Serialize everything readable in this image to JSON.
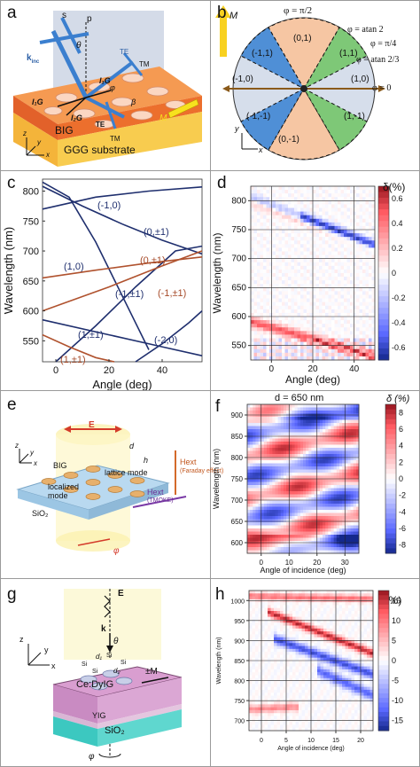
{
  "panels": {
    "a": {
      "label": "a",
      "layer_big": "BIG",
      "substrate": "GGG substrate",
      "s": "s",
      "p": "p",
      "theta": "θ",
      "k_inc": "k",
      "k_inc_sub": "inc",
      "te": "TE",
      "tm": "TM",
      "m": "M",
      "g_left": "l₁G",
      "g_mid": "l₂G",
      "g_right": "l₁G",
      "phi": "φ",
      "beta": "β",
      "x": "x",
      "y": "y",
      "z": "z"
    },
    "b": {
      "label": "b",
      "m": "M",
      "phi_pi2": "φ = π/2",
      "phi_atan2": "φ = atan 2",
      "phi_pi4": "φ = π/4",
      "phi_atan23": "φ = atan 2/3",
      "phi_0": "φ = 0",
      "orders": [
        "(0,1)",
        "(-1,1)",
        "(1,1)",
        "(-1,0)",
        "(1,0)",
        "(-1,-1)",
        "(1,-1)",
        "(0,-1)"
      ],
      "x": "x",
      "y": "y"
    },
    "c": {
      "label": "c",
      "labels": [
        "(-1,0)",
        "(0,±1)",
        "(1,0)",
        "(0,±1)",
        "(-1,±1)",
        "(-1,±1)",
        "(1,±1)",
        "(-2,0)",
        "(1,±1)"
      ]
    },
    "d": {
      "label": "d",
      "cbar_title": "δ(%)"
    },
    "e": {
      "label": "e",
      "big": "BIG",
      "sio2": "SiO₂",
      "e": "E",
      "d": "d",
      "h": "h",
      "lattice": "lattice mode",
      "localized": "localized mode",
      "hext_top": "Hext",
      "faraday": "(Faraday effect)",
      "hext_bottom": "Hext",
      "tmoke": "(TMOKE)",
      "phi": "φ",
      "x": "x",
      "y": "y",
      "z": "z"
    },
    "f": {
      "label": "f",
      "title": "d = 650 nm",
      "cbar_title": "δ (%)"
    },
    "g": {
      "label": "g",
      "e": "E",
      "k": "k",
      "theta": "θ",
      "m": "±M",
      "si": "Si",
      "d1": "d₁",
      "d2": "d₂",
      "cedyig": "Ce:DyIG",
      "yig": "YIG",
      "sio2": "SiO₂",
      "phi": "φ",
      "x": "x",
      "y": "y",
      "z": "z"
    },
    "h": {
      "label": "h",
      "cbar_title": "δ(%)"
    }
  },
  "chart_data": [
    {
      "panel": "c",
      "type": "line",
      "xlabel": "Angle (deg)",
      "ylabel": "Wavelength (nm)",
      "xlim": [
        -5,
        55
      ],
      "ylim": [
        515,
        820
      ],
      "xticks": [
        "0",
        "20",
        "40"
      ],
      "yticks": [
        "550",
        "600",
        "650",
        "700",
        "750",
        "800"
      ],
      "series": [
        {
          "color": "#1f2f6e",
          "x": [
            -5,
            10,
            25,
            40,
            55
          ],
          "y": [
            808,
            775,
            745,
            718,
            695
          ]
        },
        {
          "color": "#1f2f6e",
          "x": [
            -5,
            15,
            35,
            55
          ],
          "y": [
            770,
            790,
            800,
            807
          ]
        },
        {
          "color": "#1f2f6e",
          "x": [
            -5,
            5,
            15,
            25,
            35
          ],
          "y": [
            815,
            790,
            715,
            625,
            535
          ]
        },
        {
          "color": "#1f2f6e",
          "x": [
            0,
            15,
            30,
            45,
            55
          ],
          "y": [
            515,
            575,
            640,
            700,
            708
          ]
        },
        {
          "color": "#1f2f6e",
          "x": [
            -5,
            20,
            40,
            55
          ],
          "y": [
            585,
            560,
            540,
            525
          ]
        },
        {
          "color": "#1f2f6e",
          "x": [
            30,
            40,
            50,
            55
          ],
          "y": [
            515,
            545,
            580,
            600
          ]
        },
        {
          "color": "#b0522e",
          "x": [
            -5,
            15,
            35,
            55
          ],
          "y": [
            655,
            668,
            680,
            690
          ]
        },
        {
          "color": "#b0522e",
          "x": [
            -5,
            20,
            40,
            55
          ],
          "y": [
            600,
            640,
            675,
            700
          ]
        },
        {
          "color": "#b0522e",
          "x": [
            -5,
            5,
            15,
            22
          ],
          "y": [
            560,
            540,
            522,
            515
          ]
        }
      ]
    },
    {
      "panel": "d",
      "type": "heatmap",
      "xlabel": "Angle (deg)",
      "ylabel": "Wavelength (nm)",
      "xticks": [
        "0",
        "20",
        "40"
      ],
      "yticks": [
        "550",
        "600",
        "650",
        "700",
        "750",
        "800"
      ],
      "clim": [
        -0.65,
        0.65
      ],
      "cbar_ticks": [
        "0.6",
        "0.4",
        "0.2",
        "0",
        "-0.2",
        "-0.4",
        "-0.6"
      ]
    },
    {
      "panel": "f",
      "type": "heatmap",
      "xlabel": "Angle of incidence (deg)",
      "ylabel": "Wavelength (nm)",
      "xticks": [
        "0",
        "10",
        "20",
        "30"
      ],
      "yticks": [
        "600",
        "650",
        "700",
        "750",
        "800",
        "850",
        "900"
      ],
      "clim": [
        -9,
        9
      ],
      "cbar_ticks": [
        "8",
        "6",
        "4",
        "2",
        "0",
        "-2",
        "-4",
        "-6",
        "-8"
      ]
    },
    {
      "panel": "h",
      "type": "heatmap",
      "xlabel": "Angle of incidence (deg)",
      "ylabel": "Wavelength (nm)",
      "xticks": [
        "0",
        "5",
        "10",
        "15",
        "20"
      ],
      "yticks": [
        "700",
        "750",
        "800",
        "850",
        "900",
        "950",
        "1000"
      ],
      "clim": [
        -15,
        15
      ],
      "cbar_ticks": [
        "15",
        "10",
        "5",
        "0",
        "-5",
        "-10",
        "-15"
      ]
    }
  ]
}
